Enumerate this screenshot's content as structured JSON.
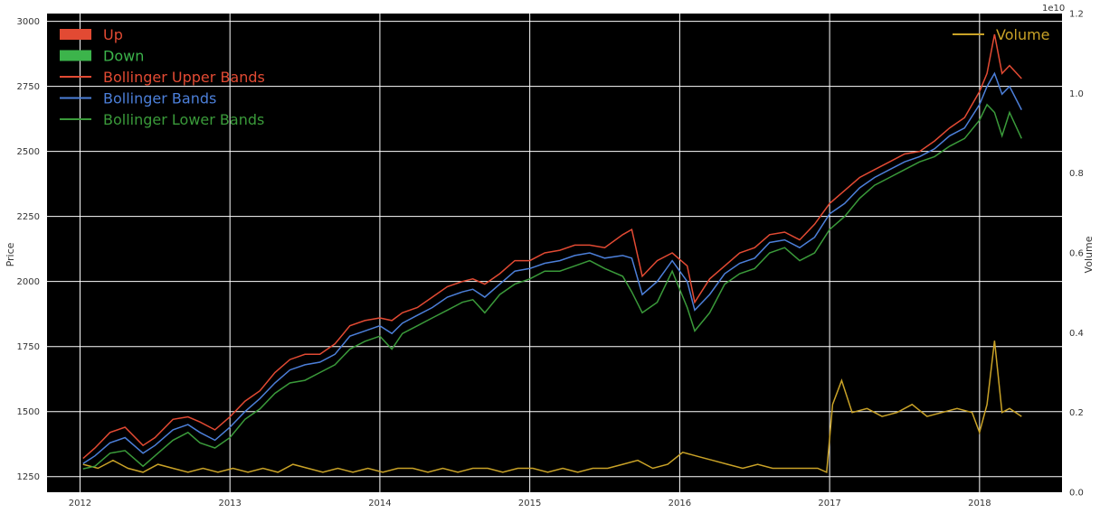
{
  "chart_data": {
    "type": "line",
    "ylabel": "Price",
    "ylabel_right": "Volume",
    "right_axis_multiplier": "1e10",
    "x_ticks": [
      "2012",
      "2013",
      "2014",
      "2015",
      "2016",
      "2017",
      "2018"
    ],
    "x_range": [
      2011.78,
      2018.55
    ],
    "ylim": [
      1190,
      3030
    ],
    "y_ticks": [
      1250,
      1500,
      1750,
      2000,
      2250,
      2500,
      2750,
      3000
    ],
    "ylim_right": [
      0.0,
      1.2
    ],
    "y_ticks_right": [
      "0.0",
      "0.2",
      "0.4",
      "0.6",
      "0.8",
      "1.0",
      "1.2"
    ],
    "grid": true,
    "background": "#000000",
    "legend_left_position": "top-left",
    "legend_right_position": "top-right",
    "legend_left": [
      {
        "label": "Up",
        "kind": "patch",
        "color": "#e24a33"
      },
      {
        "label": "Down",
        "kind": "patch",
        "color": "#3cb44b"
      },
      {
        "label": "Bollinger Upper Bands",
        "kind": "line",
        "color": "#e24a33"
      },
      {
        "label": "Bollinger Bands",
        "kind": "line",
        "color": "#4c7fd9"
      },
      {
        "label": "Bollinger Lower Bands",
        "kind": "line",
        "color": "#3a9a3a"
      }
    ],
    "legend_right": [
      {
        "label": "Volume",
        "kind": "line",
        "color": "#c9a227"
      }
    ],
    "series_price": [
      {
        "name": "Bollinger Upper Bands",
        "color": "#e24a33",
        "x": [
          2012.02,
          2012.1,
          2012.2,
          2012.3,
          2012.42,
          2012.5,
          2012.62,
          2012.72,
          2012.8,
          2012.9,
          2013.0,
          2013.1,
          2013.2,
          2013.3,
          2013.4,
          2013.5,
          2013.6,
          2013.7,
          2013.8,
          2013.9,
          2014.0,
          2014.08,
          2014.15,
          2014.25,
          2014.35,
          2014.45,
          2014.55,
          2014.62,
          2014.7,
          2014.8,
          2014.9,
          2015.0,
          2015.1,
          2015.2,
          2015.3,
          2015.4,
          2015.5,
          2015.62,
          2015.68,
          2015.75,
          2015.85,
          2015.95,
          2016.05,
          2016.1,
          2016.2,
          2016.3,
          2016.4,
          2016.5,
          2016.6,
          2016.7,
          2016.8,
          2016.9,
          2017.0,
          2017.1,
          2017.2,
          2017.3,
          2017.4,
          2017.5,
          2017.6,
          2017.7,
          2017.8,
          2017.9,
          2018.0,
          2018.05,
          2018.1,
          2018.15,
          2018.2,
          2018.28
        ],
        "y": [
          1320,
          1360,
          1420,
          1440,
          1370,
          1400,
          1470,
          1480,
          1460,
          1430,
          1480,
          1540,
          1580,
          1650,
          1700,
          1720,
          1720,
          1760,
          1830,
          1850,
          1860,
          1850,
          1880,
          1900,
          1940,
          1980,
          2000,
          2010,
          1990,
          2030,
          2080,
          2080,
          2110,
          2120,
          2140,
          2140,
          2130,
          2180,
          2200,
          2020,
          2080,
          2110,
          2060,
          1920,
          2010,
          2060,
          2110,
          2130,
          2180,
          2190,
          2160,
          2220,
          2300,
          2350,
          2400,
          2430,
          2460,
          2490,
          2500,
          2540,
          2590,
          2630,
          2730,
          2800,
          2950,
          2800,
          2830,
          2780
        ]
      },
      {
        "name": "Bollinger Bands",
        "color": "#4c7fd9",
        "x": [
          2012.02,
          2012.1,
          2012.2,
          2012.3,
          2012.42,
          2012.5,
          2012.62,
          2012.72,
          2012.8,
          2012.9,
          2013.0,
          2013.1,
          2013.2,
          2013.3,
          2013.4,
          2013.5,
          2013.6,
          2013.7,
          2013.8,
          2013.9,
          2014.0,
          2014.08,
          2014.15,
          2014.25,
          2014.35,
          2014.45,
          2014.55,
          2014.62,
          2014.7,
          2014.8,
          2014.9,
          2015.0,
          2015.1,
          2015.2,
          2015.3,
          2015.4,
          2015.5,
          2015.62,
          2015.68,
          2015.75,
          2015.85,
          2015.95,
          2016.05,
          2016.1,
          2016.2,
          2016.3,
          2016.4,
          2016.5,
          2016.6,
          2016.7,
          2016.8,
          2016.9,
          2017.0,
          2017.1,
          2017.2,
          2017.3,
          2017.4,
          2017.5,
          2017.6,
          2017.7,
          2017.8,
          2017.9,
          2018.0,
          2018.05,
          2018.1,
          2018.15,
          2018.2,
          2018.28
        ],
        "y": [
          1300,
          1330,
          1380,
          1400,
          1340,
          1370,
          1430,
          1450,
          1420,
          1390,
          1440,
          1500,
          1550,
          1610,
          1660,
          1680,
          1690,
          1720,
          1790,
          1810,
          1830,
          1800,
          1840,
          1870,
          1900,
          1940,
          1960,
          1970,
          1940,
          1990,
          2040,
          2050,
          2070,
          2080,
          2100,
          2110,
          2090,
          2100,
          2090,
          1950,
          2000,
          2080,
          2000,
          1890,
          1950,
          2030,
          2070,
          2090,
          2150,
          2160,
          2130,
          2170,
          2260,
          2300,
          2360,
          2400,
          2430,
          2460,
          2480,
          2510,
          2560,
          2590,
          2680,
          2750,
          2800,
          2720,
          2750,
          2660
        ]
      },
      {
        "name": "Bollinger Lower Bands",
        "color": "#3a9a3a",
        "x": [
          2012.02,
          2012.1,
          2012.2,
          2012.3,
          2012.42,
          2012.5,
          2012.62,
          2012.72,
          2012.8,
          2012.9,
          2013.0,
          2013.1,
          2013.2,
          2013.3,
          2013.4,
          2013.5,
          2013.6,
          2013.7,
          2013.8,
          2013.9,
          2014.0,
          2014.08,
          2014.15,
          2014.25,
          2014.35,
          2014.45,
          2014.55,
          2014.62,
          2014.7,
          2014.8,
          2014.9,
          2015.0,
          2015.1,
          2015.2,
          2015.3,
          2015.4,
          2015.5,
          2015.62,
          2015.68,
          2015.75,
          2015.85,
          2015.95,
          2016.05,
          2016.1,
          2016.2,
          2016.3,
          2016.4,
          2016.5,
          2016.6,
          2016.7,
          2016.8,
          2016.9,
          2017.0,
          2017.1,
          2017.2,
          2017.3,
          2017.4,
          2017.5,
          2017.6,
          2017.7,
          2017.8,
          2017.9,
          2018.0,
          2018.05,
          2018.1,
          2018.15,
          2018.2,
          2018.28
        ],
        "y": [
          1280,
          1290,
          1340,
          1350,
          1290,
          1330,
          1390,
          1420,
          1380,
          1360,
          1400,
          1470,
          1510,
          1570,
          1610,
          1620,
          1650,
          1680,
          1740,
          1770,
          1790,
          1740,
          1800,
          1830,
          1860,
          1890,
          1920,
          1930,
          1880,
          1950,
          1990,
          2010,
          2040,
          2040,
          2060,
          2080,
          2050,
          2020,
          1960,
          1880,
          1920,
          2040,
          1900,
          1810,
          1880,
          1990,
          2030,
          2050,
          2110,
          2130,
          2080,
          2110,
          2200,
          2250,
          2320,
          2370,
          2400,
          2430,
          2460,
          2480,
          2520,
          2550,
          2620,
          2680,
          2650,
          2560,
          2650,
          2550
        ]
      }
    ],
    "series_volume": {
      "name": "Volume",
      "color": "#c9a227",
      "unit": "1e10",
      "x": [
        2012.02,
        2012.12,
        2012.22,
        2012.32,
        2012.42,
        2012.52,
        2012.62,
        2012.72,
        2012.82,
        2012.92,
        2013.02,
        2013.12,
        2013.22,
        2013.32,
        2013.42,
        2013.52,
        2013.62,
        2013.72,
        2013.82,
        2013.92,
        2014.02,
        2014.12,
        2014.22,
        2014.32,
        2014.42,
        2014.52,
        2014.62,
        2014.72,
        2014.82,
        2014.92,
        2015.02,
        2015.12,
        2015.22,
        2015.32,
        2015.42,
        2015.52,
        2015.62,
        2015.72,
        2015.82,
        2015.92,
        2016.02,
        2016.12,
        2016.22,
        2016.32,
        2016.42,
        2016.52,
        2016.62,
        2016.72,
        2016.82,
        2016.92,
        2016.98,
        2017.02,
        2017.08,
        2017.15,
        2017.25,
        2017.35,
        2017.45,
        2017.55,
        2017.65,
        2017.75,
        2017.85,
        2017.95,
        2018.0,
        2018.05,
        2018.1,
        2018.15,
        2018.2,
        2018.28
      ],
      "y": [
        0.07,
        0.06,
        0.08,
        0.06,
        0.05,
        0.07,
        0.06,
        0.05,
        0.06,
        0.05,
        0.06,
        0.05,
        0.06,
        0.05,
        0.07,
        0.06,
        0.05,
        0.06,
        0.05,
        0.06,
        0.05,
        0.06,
        0.06,
        0.05,
        0.06,
        0.05,
        0.06,
        0.06,
        0.05,
        0.06,
        0.06,
        0.05,
        0.06,
        0.05,
        0.06,
        0.06,
        0.07,
        0.08,
        0.06,
        0.07,
        0.1,
        0.09,
        0.08,
        0.07,
        0.06,
        0.07,
        0.06,
        0.06,
        0.06,
        0.06,
        0.05,
        0.22,
        0.28,
        0.2,
        0.21,
        0.19,
        0.2,
        0.22,
        0.19,
        0.2,
        0.21,
        0.2,
        0.15,
        0.22,
        0.38,
        0.2,
        0.21,
        0.19
      ]
    }
  }
}
